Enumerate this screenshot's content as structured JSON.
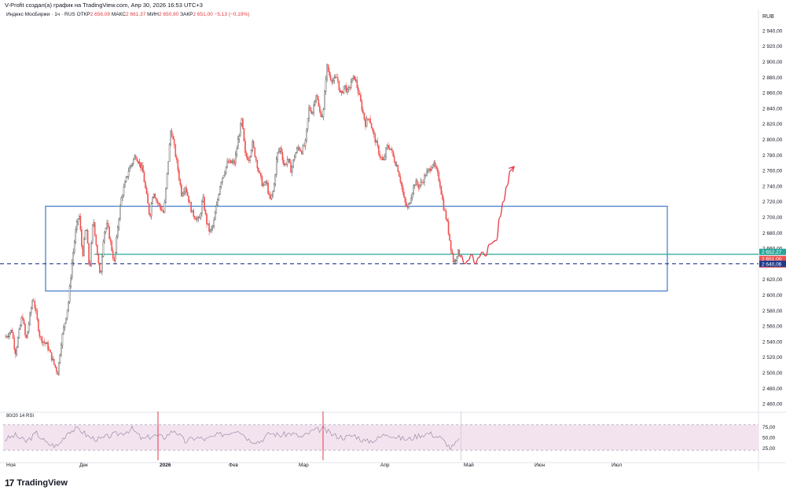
{
  "header": {
    "topline": "V-Profit создал(а) график на TradingView.com, Апр 30, 2026 16:53 UTC+3",
    "symbol": "Индекс МосБиржи · 1ч · RUS",
    "open_label": "ОТКР",
    "open_value": "2 656,09",
    "high_label": "МАКС",
    "high_value": "2 661,37",
    "low_label": "МИН",
    "low_value": "2 650,90",
    "close_label": "ЗАКР",
    "close_value": "2 651,00",
    "change_value": "−5,13 (−0,19%)"
  },
  "footer": {
    "logo_text": "TradingView",
    "logo_mark": "17"
  },
  "colors": {
    "up": "#26a69a",
    "down": "#ef5350",
    "candle": "#4a4a4a",
    "box": "#3f77c4",
    "level_green": "#26a69a",
    "dashed": "#1e3a8a",
    "forecast": "#e53946",
    "rsi_fill": "#f3e3ef",
    "rsi_line": "#9a8fa8",
    "rsi_red": "#e53946"
  },
  "chart_data": {
    "type": "candlestick",
    "currency": "RUB",
    "y_ticks": [
      "2 940,00",
      "2 920,00",
      "2 900,00",
      "2 880,00",
      "2 860,00",
      "2 840,00",
      "2 820,00",
      "2 800,00",
      "2 780,00",
      "2 760,00",
      "2 740,00",
      "2 720,00",
      "2 700,00",
      "2 680,00",
      "2 660,00",
      "2 640,00",
      "2 620,00",
      "2 600,00",
      "2 580,00",
      "2 560,00",
      "2 540,00",
      "2 520,00",
      "2 500,00",
      "2 480,00",
      "2 460,00"
    ],
    "ylim": [
      2452,
      2952
    ],
    "x_ticks": [
      {
        "label": "Ноя",
        "bold": false
      },
      {
        "label": "Дек",
        "bold": false
      },
      {
        "label": "2026",
        "bold": true
      },
      {
        "label": "Фев",
        "bold": false
      },
      {
        "label": "Мар",
        "bold": false
      },
      {
        "label": "Апр",
        "bold": false
      },
      {
        "label": "Май",
        "bold": false
      },
      {
        "label": "Июн",
        "bold": false
      },
      {
        "label": "Июл",
        "bold": false
      }
    ],
    "price_path": [
      [
        0,
        2545
      ],
      [
        2,
        2555
      ],
      [
        3,
        2525
      ],
      [
        5,
        2575
      ],
      [
        6,
        2540
      ],
      [
        8,
        2598
      ],
      [
        10,
        2545
      ],
      [
        12,
        2535
      ],
      [
        14,
        2510
      ],
      [
        15,
        2500
      ],
      [
        16,
        2540
      ],
      [
        18,
        2590
      ],
      [
        19,
        2640
      ],
      [
        20,
        2680
      ],
      [
        21,
        2705
      ],
      [
        22,
        2650
      ],
      [
        23,
        2690
      ],
      [
        24,
        2630
      ],
      [
        25,
        2700
      ],
      [
        26,
        2660
      ],
      [
        27,
        2620
      ],
      [
        28,
        2680
      ],
      [
        29,
        2690
      ],
      [
        30,
        2665
      ],
      [
        31,
        2640
      ],
      [
        32,
        2690
      ],
      [
        33,
        2725
      ],
      [
        35,
        2760
      ],
      [
        37,
        2780
      ],
      [
        39,
        2760
      ],
      [
        40,
        2730
      ],
      [
        41,
        2700
      ],
      [
        42,
        2735
      ],
      [
        43,
        2720
      ],
      [
        45,
        2705
      ],
      [
        47,
        2815
      ],
      [
        49,
        2760
      ],
      [
        50,
        2730
      ],
      [
        51,
        2740
      ],
      [
        53,
        2705
      ],
      [
        55,
        2695
      ],
      [
        56,
        2725
      ],
      [
        57,
        2695
      ],
      [
        58,
        2680
      ],
      [
        59,
        2690
      ],
      [
        61,
        2745
      ],
      [
        63,
        2770
      ],
      [
        65,
        2770
      ],
      [
        66,
        2800
      ],
      [
        67,
        2825
      ],
      [
        68,
        2780
      ],
      [
        69,
        2775
      ],
      [
        70,
        2795
      ],
      [
        71,
        2775
      ],
      [
        72,
        2755
      ],
      [
        73,
        2740
      ],
      [
        74,
        2745
      ],
      [
        75,
        2720
      ],
      [
        76,
        2735
      ],
      [
        77,
        2780
      ],
      [
        78,
        2790
      ],
      [
        79,
        2765
      ],
      [
        80,
        2775
      ],
      [
        81,
        2760
      ],
      [
        82,
        2780
      ],
      [
        83,
        2790
      ],
      [
        84,
        2785
      ],
      [
        85,
        2795
      ],
      [
        86,
        2840
      ],
      [
        87,
        2835
      ],
      [
        88,
        2860
      ],
      [
        89,
        2835
      ],
      [
        90,
        2830
      ],
      [
        91,
        2895
      ],
      [
        92,
        2880
      ],
      [
        93,
        2875
      ],
      [
        94,
        2880
      ],
      [
        95,
        2855
      ],
      [
        96,
        2870
      ],
      [
        97,
        2860
      ],
      [
        98,
        2875
      ],
      [
        99,
        2880
      ],
      [
        100,
        2860
      ],
      [
        101,
        2840
      ],
      [
        102,
        2820
      ],
      [
        103,
        2830
      ],
      [
        104,
        2810
      ],
      [
        105,
        2795
      ],
      [
        106,
        2780
      ],
      [
        107,
        2770
      ],
      [
        108,
        2790
      ],
      [
        109,
        2790
      ],
      [
        110,
        2775
      ],
      [
        111,
        2765
      ],
      [
        112,
        2745
      ],
      [
        113,
        2720
      ],
      [
        114,
        2710
      ],
      [
        115,
        2730
      ],
      [
        116,
        2745
      ],
      [
        117,
        2740
      ],
      [
        118,
        2745
      ],
      [
        119,
        2755
      ],
      [
        120,
        2760
      ],
      [
        121,
        2770
      ],
      [
        122,
        2760
      ],
      [
        123,
        2745
      ],
      [
        124,
        2715
      ],
      [
        125,
        2695
      ],
      [
        126,
        2665
      ],
      [
        127,
        2640
      ],
      [
        128,
        2655
      ],
      [
        129,
        2651
      ]
    ],
    "period": "1ч",
    "price_labels": [
      {
        "price": 2652.27,
        "text": "2 652,27",
        "bg": "#26a69a"
      },
      {
        "price": 2651.0,
        "text": "2 651,00",
        "text2": "06:41",
        "bg": "#ef5350"
      },
      {
        "price": 2640.06,
        "text": "2 640,06",
        "bg": "#1e3a8a"
      }
    ],
    "zone": {
      "top": 2714,
      "bottom": 2605
    },
    "support_level": 2652.27,
    "dashed_level": 2640.06,
    "forecast_path": [
      [
        129,
        2651
      ],
      [
        130,
        2640
      ],
      [
        131,
        2644
      ],
      [
        132,
        2652
      ],
      [
        133,
        2640
      ],
      [
        134,
        2648
      ],
      [
        135,
        2655
      ],
      [
        136,
        2650
      ],
      [
        137,
        2665
      ],
      [
        139,
        2670
      ],
      [
        140,
        2700
      ],
      [
        141,
        2720
      ],
      [
        142,
        2740
      ],
      [
        143,
        2760
      ],
      [
        144,
        2765
      ]
    ],
    "rsi": {
      "label": "80/20 14 RSI",
      "levels": [
        75,
        50,
        25
      ],
      "level_labels": [
        "75,00",
        "50,00",
        "25,00"
      ],
      "band": [
        20,
        80
      ],
      "path": [
        [
          0,
          45
        ],
        [
          3,
          55
        ],
        [
          6,
          40
        ],
        [
          9,
          60
        ],
        [
          12,
          35
        ],
        [
          15,
          30
        ],
        [
          18,
          65
        ],
        [
          21,
          70
        ],
        [
          24,
          50
        ],
        [
          27,
          45
        ],
        [
          30,
          55
        ],
        [
          33,
          60
        ],
        [
          36,
          70
        ],
        [
          39,
          45
        ],
        [
          42,
          55
        ],
        [
          45,
          50
        ],
        [
          48,
          68
        ],
        [
          51,
          40
        ],
        [
          54,
          50
        ],
        [
          57,
          45
        ],
        [
          60,
          55
        ],
        [
          63,
          60
        ],
        [
          66,
          70
        ],
        [
          69,
          45
        ],
        [
          72,
          40
        ],
        [
          75,
          60
        ],
        [
          78,
          55
        ],
        [
          81,
          60
        ],
        [
          84,
          50
        ],
        [
          87,
          65
        ],
        [
          90,
          70
        ],
        [
          93,
          55
        ],
        [
          96,
          50
        ],
        [
          99,
          55
        ],
        [
          102,
          40
        ],
        [
          105,
          45
        ],
        [
          108,
          60
        ],
        [
          111,
          50
        ],
        [
          114,
          45
        ],
        [
          117,
          55
        ],
        [
          120,
          60
        ],
        [
          123,
          50
        ],
        [
          125,
          35
        ],
        [
          126,
          25
        ],
        [
          127,
          30
        ],
        [
          128,
          40
        ],
        [
          129,
          45
        ]
      ]
    }
  }
}
